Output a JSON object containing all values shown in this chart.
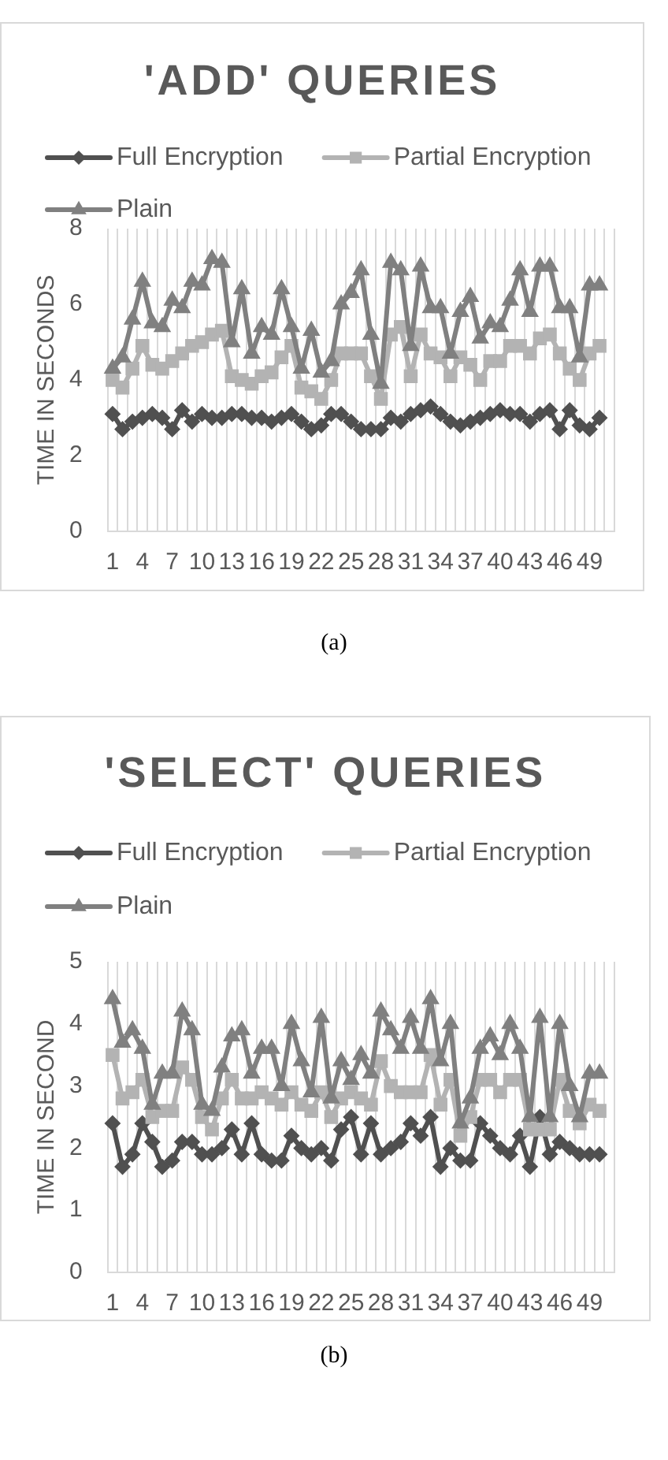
{
  "chart_data": [
    {
      "type": "line",
      "title": "'ADD' QUERIES",
      "ylabel": "TIME IN SECONDS",
      "categories": [
        "1",
        null,
        null,
        "4",
        null,
        null,
        "7",
        null,
        null,
        "10",
        null,
        null,
        "13",
        null,
        null,
        "16",
        null,
        null,
        "19",
        null,
        null,
        "22",
        null,
        null,
        "25",
        null,
        null,
        "28",
        null,
        null,
        "31",
        null,
        null,
        "34",
        null,
        null,
        "37",
        null,
        null,
        "40",
        null,
        null,
        "43",
        null,
        null,
        "46",
        null,
        null,
        "49",
        null,
        null
      ],
      "series": [
        {
          "name": "Full Encryption",
          "color": "#505050",
          "marker": "diamond",
          "values": [
            3.1,
            2.7,
            2.9,
            3.0,
            3.1,
            3.0,
            2.7,
            3.2,
            2.9,
            3.1,
            3.0,
            3.0,
            3.1,
            3.1,
            3.0,
            3.0,
            2.9,
            3.0,
            3.1,
            2.9,
            2.7,
            2.8,
            3.1,
            3.1,
            2.9,
            2.7,
            2.7,
            2.7,
            3.0,
            2.9,
            3.1,
            3.2,
            3.3,
            3.1,
            2.9,
            2.8,
            2.9,
            3.0,
            3.1,
            3.2,
            3.1,
            3.1,
            2.9,
            3.1,
            3.2,
            2.7,
            3.2,
            2.8,
            2.7,
            3.0,
            null
          ]
        },
        {
          "name": "Partial Encryption",
          "color": "#b3b3b3",
          "marker": "square",
          "values": [
            4.0,
            3.8,
            4.3,
            4.9,
            4.4,
            4.3,
            4.5,
            4.7,
            4.9,
            5.0,
            5.2,
            5.3,
            4.1,
            4.0,
            3.9,
            4.1,
            4.2,
            4.6,
            4.9,
            3.8,
            3.7,
            3.5,
            4.0,
            4.7,
            4.7,
            4.7,
            4.1,
            3.5,
            5.2,
            5.4,
            4.1,
            5.2,
            4.7,
            4.6,
            4.1,
            4.6,
            4.4,
            4.0,
            4.5,
            4.5,
            4.9,
            4.9,
            4.7,
            5.1,
            5.2,
            4.7,
            4.3,
            4.0,
            4.7,
            4.9,
            null
          ]
        },
        {
          "name": "Plain",
          "color": "#808080",
          "marker": "triangle",
          "values": [
            4.3,
            4.6,
            5.6,
            6.6,
            5.5,
            5.4,
            6.1,
            5.9,
            6.6,
            6.5,
            7.2,
            7.1,
            5.0,
            6.4,
            4.7,
            5.4,
            5.2,
            6.4,
            5.4,
            4.3,
            5.3,
            4.2,
            4.5,
            6.0,
            6.3,
            6.9,
            5.2,
            3.9,
            7.1,
            6.9,
            4.9,
            7.0,
            5.9,
            5.9,
            4.7,
            5.8,
            6.2,
            5.1,
            5.5,
            5.4,
            6.1,
            6.9,
            5.8,
            7.0,
            7.0,
            5.9,
            5.9,
            4.6,
            6.5,
            6.5,
            null
          ]
        }
      ],
      "ylim": [
        0,
        8
      ],
      "yticks": [
        0,
        2,
        4,
        6,
        8
      ],
      "grid": "x",
      "legend": "top",
      "line_style": "solid",
      "annotations": [
        "(a)"
      ]
    },
    {
      "type": "line",
      "title": "'SELECT' QUERIES",
      "ylabel": "TIME IN SECOND",
      "categories": [
        "1",
        null,
        null,
        "4",
        null,
        null,
        "7",
        null,
        null,
        "10",
        null,
        null,
        "13",
        null,
        null,
        "16",
        null,
        null,
        "19",
        null,
        null,
        "22",
        null,
        null,
        "25",
        null,
        null,
        "28",
        null,
        null,
        "31",
        null,
        null,
        "34",
        null,
        null,
        "37",
        null,
        null,
        "40",
        null,
        null,
        "43",
        null,
        null,
        "46",
        null,
        null,
        "49",
        null,
        null
      ],
      "series": [
        {
          "name": "Full Encryption",
          "color": "#505050",
          "marker": "diamond",
          "values": [
            2.4,
            1.7,
            1.9,
            2.4,
            2.1,
            1.7,
            1.8,
            2.1,
            2.1,
            1.9,
            1.9,
            2.0,
            2.3,
            1.9,
            2.4,
            1.9,
            1.8,
            1.8,
            2.2,
            2.0,
            1.9,
            2.0,
            1.8,
            2.3,
            2.5,
            1.9,
            2.4,
            1.9,
            2.0,
            2.1,
            2.4,
            2.2,
            2.5,
            1.7,
            2.0,
            1.8,
            1.8,
            2.4,
            2.2,
            2.0,
            1.9,
            2.2,
            1.7,
            2.5,
            1.9,
            2.1,
            2.0,
            1.9,
            1.9,
            1.9,
            null
          ]
        },
        {
          "name": "Partial Encryption",
          "color": "#b3b3b3",
          "marker": "square",
          "values": [
            3.5,
            2.8,
            2.9,
            3.1,
            2.5,
            2.6,
            2.6,
            3.3,
            3.1,
            2.5,
            2.3,
            2.8,
            3.1,
            2.8,
            2.8,
            2.9,
            2.8,
            2.7,
            2.9,
            2.7,
            2.6,
            2.9,
            2.5,
            2.8,
            2.9,
            2.8,
            2.7,
            3.4,
            3.0,
            2.9,
            2.9,
            2.9,
            3.5,
            2.7,
            3.1,
            2.2,
            2.5,
            3.1,
            3.1,
            2.9,
            3.1,
            3.1,
            2.3,
            2.3,
            2.3,
            3.1,
            2.6,
            2.4,
            2.7,
            2.6,
            null
          ]
        },
        {
          "name": "Plain",
          "color": "#808080",
          "marker": "triangle",
          "values": [
            4.4,
            3.7,
            3.9,
            3.6,
            2.7,
            3.2,
            3.2,
            4.2,
            3.9,
            2.7,
            2.6,
            3.3,
            3.8,
            3.9,
            3.2,
            3.6,
            3.6,
            3.0,
            4.0,
            3.4,
            2.9,
            4.1,
            2.8,
            3.4,
            3.1,
            3.5,
            3.2,
            4.2,
            3.9,
            3.6,
            4.1,
            3.6,
            4.4,
            3.4,
            4.0,
            2.4,
            2.8,
            3.6,
            3.8,
            3.5,
            4.0,
            3.6,
            2.5,
            4.1,
            2.5,
            4.0,
            3.0,
            2.5,
            3.2,
            3.2,
            null
          ]
        }
      ],
      "ylim": [
        0,
        5
      ],
      "yticks": [
        0,
        1,
        2,
        3,
        4,
        5
      ],
      "grid": "x",
      "legend": "top",
      "line_style": "solid",
      "annotations": [
        "(b)"
      ]
    }
  ]
}
